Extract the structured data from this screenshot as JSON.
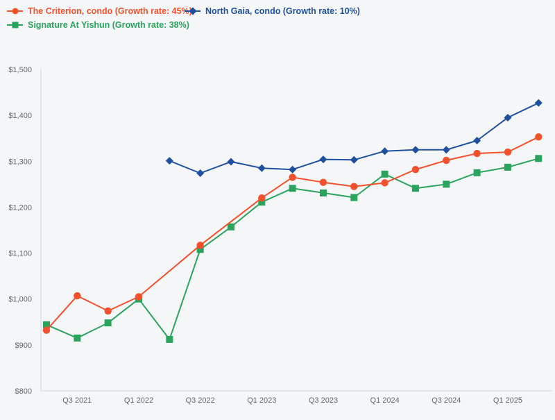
{
  "page": {
    "background": "#f4f6f8"
  },
  "legend": {
    "items": [
      {
        "label": "The Criterion, condo (Growth rate: 45%)",
        "color": "#f4502b",
        "marker": "circle"
      },
      {
        "label": "North Gaia, condo (Growth rate: 10%)",
        "color": "#1f4f9f",
        "marker": "diamond"
      },
      {
        "label": "Signature At Yishun (Growth rate: 38%)",
        "color": "#2aa45c",
        "marker": "square"
      }
    ]
  },
  "chart_data": {
    "type": "line",
    "title": "",
    "xlabel": "",
    "ylabel": "",
    "grid": false,
    "legend_position": "top-left",
    "categories": [
      "Q2 2021",
      "Q3 2021",
      "Q4 2021",
      "Q1 2022",
      "Q2 2022",
      "Q3 2022",
      "Q4 2022",
      "Q1 2023",
      "Q2 2023",
      "Q3 2023",
      "Q4 2023",
      "Q1 2024",
      "Q2 2024",
      "Q3 2024",
      "Q4 2024",
      "Q1 2025",
      "Q2 2025"
    ],
    "series": [
      {
        "name": "The Criterion, condo",
        "growth_rate": "45%",
        "color": "#f4502b",
        "marker": "circle",
        "values": [
          932,
          1007,
          974,
          1005,
          null,
          1117,
          null,
          1220,
          1265,
          1254,
          1245,
          1253,
          1282,
          1302,
          1317,
          1320,
          1353
        ]
      },
      {
        "name": "Signature At Yishun",
        "growth_rate": "38%",
        "color": "#2aa45c",
        "marker": "square",
        "values": [
          944,
          915,
          948,
          1000,
          912,
          1108,
          1157,
          1211,
          1241,
          1231,
          1221,
          1272,
          1241,
          1250,
          1275,
          1287,
          1306
        ]
      },
      {
        "name": "North Gaia, condo",
        "growth_rate": "10%",
        "color": "#1f4f9f",
        "marker": "diamond",
        "values": [
          null,
          null,
          null,
          null,
          1301,
          1274,
          1299,
          1285,
          1282,
          1304,
          1303,
          1322,
          1325,
          1325,
          1345,
          1395,
          1427
        ]
      }
    ],
    "yaxis": {
      "min": 800,
      "max": 1500,
      "tick_values": [
        800,
        900,
        1000,
        1100,
        1200,
        1300,
        1400,
        1500
      ],
      "tick_labels": [
        "$800",
        "$900",
        "$1,000",
        "$1,100",
        "$1,200",
        "$1,300",
        "$1,400",
        "$1,500"
      ]
    },
    "xaxis": {
      "tick_indices": [
        1,
        3,
        5,
        7,
        9,
        11,
        13,
        15
      ],
      "tick_labels": [
        "Q3 2021",
        "Q1 2022",
        "Q3 2022",
        "Q1 2023",
        "Q3 2023",
        "Q1 2024",
        "Q3 2024",
        "Q1 2025"
      ]
    }
  }
}
